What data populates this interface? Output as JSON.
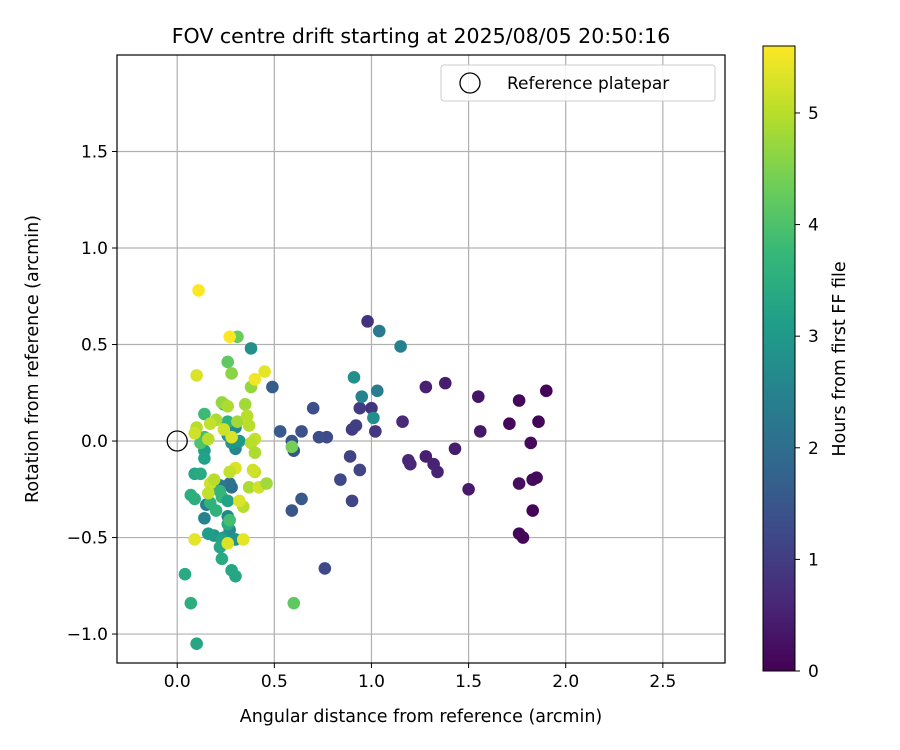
{
  "chart_data": {
    "type": "scatter",
    "title": "FOV centre drift starting at 2025/08/05 20:50:16",
    "xlabel": "Angular distance from reference (arcmin)",
    "ylabel": "Rotation from reference (arcmin)",
    "xlim": [
      -0.31,
      2.82
    ],
    "ylim": [
      -1.15,
      2.0
    ],
    "xticks": [
      0.0,
      0.5,
      1.0,
      1.5,
      2.0,
      2.5
    ],
    "xtick_labels": [
      "0.0",
      "0.5",
      "1.0",
      "1.5",
      "2.0",
      "2.5"
    ],
    "yticks": [
      -1.0,
      -0.5,
      0.0,
      0.5,
      1.0,
      1.5
    ],
    "ytick_labels": [
      "−1.0",
      "−0.5",
      "0.0",
      "0.5",
      "1.0",
      "1.5"
    ],
    "grid": true,
    "legend": {
      "placement": "upper-right",
      "entries": [
        "Reference platepar"
      ]
    },
    "reference_point": {
      "x": 0.0,
      "y": 0.0
    },
    "colorbar": {
      "label": "Hours from first FF file",
      "range": [
        0,
        5.6
      ],
      "ticks": [
        0,
        1,
        2,
        3,
        4,
        5
      ],
      "tick_labels": [
        "0",
        "1",
        "2",
        "3",
        "4",
        "5"
      ],
      "colormap": "viridis"
    },
    "points": [
      [
        1.9,
        0.26,
        0.05
      ],
      [
        1.86,
        0.1,
        0.05
      ],
      [
        1.76,
        0.21,
        0.1
      ],
      [
        1.71,
        0.09,
        0.1
      ],
      [
        1.82,
        -0.01,
        0.15
      ],
      [
        1.85,
        -0.19,
        0.15
      ],
      [
        1.83,
        -0.2,
        0.15
      ],
      [
        1.76,
        -0.22,
        0.2
      ],
      [
        1.83,
        -0.36,
        0.05
      ],
      [
        1.76,
        -0.48,
        0.1
      ],
      [
        1.78,
        -0.5,
        0.1
      ],
      [
        1.55,
        0.23,
        0.3
      ],
      [
        1.56,
        0.05,
        0.35
      ],
      [
        1.5,
        -0.25,
        0.4
      ],
      [
        1.43,
        -0.04,
        0.45
      ],
      [
        1.38,
        0.3,
        0.45
      ],
      [
        1.28,
        0.28,
        0.5
      ],
      [
        1.28,
        -0.08,
        0.5
      ],
      [
        1.32,
        -0.12,
        0.55
      ],
      [
        1.34,
        -0.16,
        0.55
      ],
      [
        1.19,
        -0.1,
        0.6
      ],
      [
        1.2,
        -0.12,
        0.6
      ],
      [
        1.16,
        0.1,
        0.65
      ],
      [
        0.98,
        0.62,
        0.8
      ],
      [
        1.0,
        0.17,
        0.85
      ],
      [
        1.02,
        0.05,
        0.9
      ],
      [
        0.94,
        0.17,
        0.95
      ],
      [
        0.9,
        0.06,
        1.0
      ],
      [
        0.92,
        0.08,
        1.05
      ],
      [
        0.89,
        -0.08,
        1.1
      ],
      [
        0.94,
        -0.15,
        1.15
      ],
      [
        0.9,
        -0.31,
        1.15
      ],
      [
        0.84,
        -0.2,
        1.2
      ],
      [
        0.76,
        -0.66,
        1.2
      ],
      [
        0.77,
        0.02,
        1.25
      ],
      [
        0.73,
        0.02,
        1.3
      ],
      [
        0.7,
        0.17,
        1.35
      ],
      [
        0.64,
        0.05,
        1.4
      ],
      [
        0.6,
        -0.05,
        1.45
      ],
      [
        0.59,
        0.0,
        1.5
      ],
      [
        0.59,
        -0.36,
        1.5
      ],
      [
        0.64,
        -0.3,
        1.55
      ],
      [
        0.53,
        0.05,
        1.6
      ],
      [
        0.49,
        0.28,
        1.65
      ],
      [
        1.04,
        0.57,
        2.3
      ],
      [
        1.03,
        0.26,
        2.4
      ],
      [
        1.15,
        0.49,
        2.45
      ],
      [
        0.95,
        0.23,
        2.5
      ],
      [
        1.01,
        0.12,
        2.75
      ],
      [
        0.91,
        0.33,
        2.8
      ],
      [
        0.28,
        -0.24,
        2.0
      ],
      [
        0.27,
        -0.22,
        2.1
      ],
      [
        0.2,
        -0.22,
        2.2
      ],
      [
        0.22,
        -0.23,
        2.3
      ],
      [
        0.15,
        -0.33,
        2.4
      ],
      [
        0.14,
        -0.4,
        2.5
      ],
      [
        0.26,
        -0.39,
        2.6
      ],
      [
        0.27,
        -0.46,
        2.7
      ],
      [
        0.3,
        -0.51,
        2.8
      ],
      [
        0.24,
        -0.5,
        2.9
      ],
      [
        0.19,
        -0.49,
        3.0
      ],
      [
        0.16,
        -0.48,
        3.1
      ],
      [
        0.23,
        -0.51,
        3.2
      ],
      [
        0.22,
        -0.55,
        3.3
      ],
      [
        0.26,
        -0.43,
        3.4
      ],
      [
        0.3,
        -0.04,
        2.6
      ],
      [
        0.3,
        0.07,
        2.7
      ],
      [
        0.26,
        0.03,
        2.8
      ],
      [
        0.28,
        -0.01,
        2.9
      ],
      [
        0.32,
        0.0,
        3.0
      ],
      [
        0.14,
        -0.05,
        3.1
      ],
      [
        0.14,
        -0.09,
        3.2
      ],
      [
        0.09,
        -0.17,
        3.3
      ],
      [
        0.12,
        -0.17,
        3.4
      ],
      [
        0.07,
        -0.28,
        3.5
      ],
      [
        0.09,
        -0.3,
        3.5
      ],
      [
        0.17,
        -0.32,
        3.6
      ],
      [
        0.2,
        -0.36,
        3.6
      ],
      [
        0.22,
        -0.26,
        3.7
      ],
      [
        0.23,
        -0.29,
        3.7
      ],
      [
        0.26,
        -0.31,
        3.2
      ],
      [
        0.28,
        -0.67,
        3.3
      ],
      [
        0.3,
        -0.7,
        3.3
      ],
      [
        0.23,
        -0.61,
        3.4
      ],
      [
        0.04,
        -0.69,
        3.4
      ],
      [
        0.07,
        -0.84,
        3.5
      ],
      [
        0.1,
        -1.05,
        3.3
      ],
      [
        0.38,
        0.48,
        2.8
      ],
      [
        0.26,
        0.1,
        3.6
      ],
      [
        0.24,
        0.19,
        3.7
      ],
      [
        0.14,
        0.14,
        3.8
      ],
      [
        0.14,
        0.02,
        3.9
      ],
      [
        0.12,
        -0.01,
        4.0
      ],
      [
        0.27,
        -0.41,
        3.9
      ],
      [
        0.31,
        0.54,
        4.3
      ],
      [
        0.26,
        0.41,
        4.2
      ],
      [
        0.28,
        0.35,
        4.6
      ],
      [
        0.38,
        0.28,
        4.7
      ],
      [
        0.35,
        0.19,
        4.8
      ],
      [
        0.23,
        0.2,
        4.7
      ],
      [
        0.26,
        0.18,
        4.9
      ],
      [
        0.31,
        0.1,
        4.8
      ],
      [
        0.36,
        0.13,
        5.0
      ],
      [
        0.37,
        0.08,
        5.0
      ],
      [
        0.4,
        0.01,
        5.1
      ],
      [
        0.38,
        -0.01,
        5.0
      ],
      [
        0.4,
        -0.06,
        4.9
      ],
      [
        0.4,
        -0.16,
        5.1
      ],
      [
        0.39,
        -0.15,
        5.2
      ],
      [
        0.37,
        -0.24,
        4.9
      ],
      [
        0.42,
        -0.24,
        5.2
      ],
      [
        0.46,
        -0.22,
        4.8
      ],
      [
        0.34,
        -0.34,
        5.0
      ],
      [
        0.32,
        -0.31,
        5.3
      ],
      [
        0.34,
        -0.51,
        5.4
      ],
      [
        0.26,
        -0.53,
        5.3
      ],
      [
        0.17,
        -0.22,
        5.2
      ],
      [
        0.19,
        -0.2,
        5.0
      ],
      [
        0.16,
        -0.27,
        5.1
      ],
      [
        0.09,
        -0.51,
        5.4
      ],
      [
        0.2,
        0.11,
        4.9
      ],
      [
        0.17,
        0.09,
        5.1
      ],
      [
        0.1,
        0.07,
        5.0
      ],
      [
        0.09,
        0.04,
        5.2
      ],
      [
        0.16,
        0.01,
        5.0
      ],
      [
        0.1,
        0.34,
        5.3
      ],
      [
        0.27,
        0.54,
        5.6
      ],
      [
        0.11,
        0.78,
        5.6
      ],
      [
        0.4,
        0.32,
        5.5
      ],
      [
        0.45,
        0.36,
        5.4
      ],
      [
        0.3,
        -0.14,
        5.3
      ],
      [
        0.27,
        -0.16,
        5.1
      ],
      [
        0.28,
        0.02,
        5.3
      ],
      [
        0.24,
        0.06,
        5.2
      ],
      [
        0.59,
        -0.03,
        4.4
      ],
      [
        0.6,
        -0.84,
        4.2
      ]
    ]
  }
}
